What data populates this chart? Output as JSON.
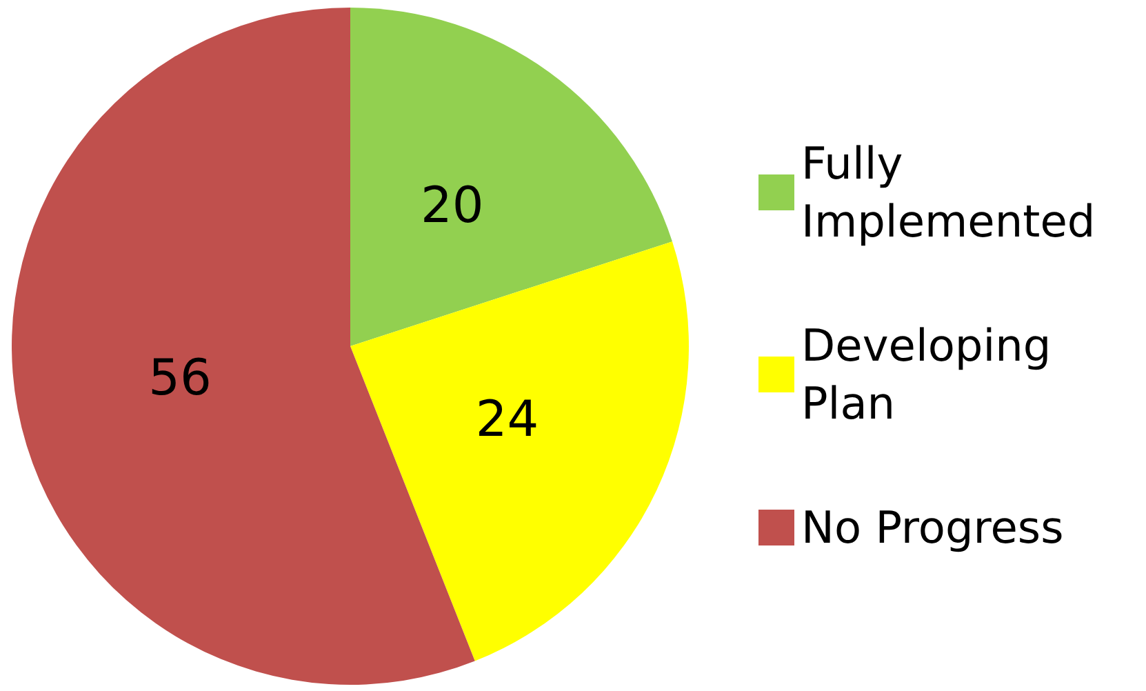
{
  "chart_data": {
    "type": "pie",
    "categories": [
      "Fully Implemented",
      "Developing Plan",
      "No Progress"
    ],
    "values": [
      20,
      24,
      56
    ],
    "colors": [
      "#92d050",
      "#ffff00",
      "#c0504d"
    ],
    "data_labels": true,
    "legend": "right"
  }
}
